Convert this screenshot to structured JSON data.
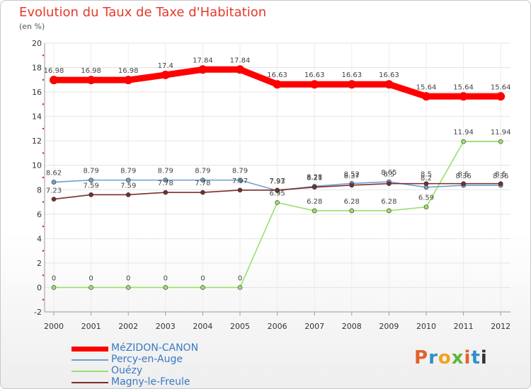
{
  "chart_data": {
    "type": "line",
    "title": "Evolution du Taux de Taxe d'Habitation",
    "ylabel": "(en %)",
    "xlabel": "",
    "categories": [
      "2000",
      "2001",
      "2002",
      "2003",
      "2004",
      "2005",
      "2006",
      "2007",
      "2008",
      "2009",
      "2010",
      "2011",
      "2012"
    ],
    "ylim": [
      -2,
      20
    ],
    "yticks": [
      "-2",
      "0",
      "2",
      "4",
      "6",
      "8",
      "10",
      "12",
      "14",
      "16",
      "18",
      "20"
    ],
    "series": [
      {
        "name": "MéZIDON-CANON",
        "color": "#ff0000",
        "values": [
          16.98,
          16.98,
          16.98,
          17.4,
          17.84,
          17.84,
          16.63,
          16.63,
          16.63,
          16.63,
          15.64,
          15.64,
          15.64
        ],
        "labels": [
          "16.98",
          "16.98",
          "16.98",
          "17.4",
          "17.84",
          "17.84",
          "16.63",
          "16.63",
          "16.63",
          "16.63",
          "15.64",
          "15.64",
          "15.64"
        ]
      },
      {
        "name": "Percy-en-Auge",
        "color": "#6f9fce",
        "values": [
          8.62,
          8.79,
          8.79,
          8.79,
          8.79,
          8.79,
          7.93,
          8.28,
          8.52,
          8.65,
          8.2,
          8.36,
          8.36
        ],
        "labels": [
          "8.62",
          "8.79",
          "8.79",
          "8.79",
          "8.79",
          "8.79",
          "7.93",
          "8.28",
          "8.52",
          "8.65",
          "8.2",
          "8.36",
          "8.36"
        ]
      },
      {
        "name": "Ouézy",
        "color": "#99e06a",
        "values": [
          0,
          0,
          0,
          0,
          0,
          0,
          6.95,
          6.28,
          6.28,
          6.28,
          6.59,
          11.94,
          11.94
        ],
        "labels": [
          "0",
          "0",
          "0",
          "0",
          "0",
          "0",
          "6.95",
          "6.28",
          "6.28",
          "6.28",
          "6.59",
          "11.94",
          "11.94"
        ]
      },
      {
        "name": "Magny-le-Freule",
        "color": "#7a2c2c",
        "values": [
          7.23,
          7.59,
          7.59,
          7.78,
          7.78,
          7.97,
          7.97,
          8.21,
          8.37,
          8.5,
          8.5,
          8.5,
          8.5
        ],
        "labels": [
          "7.23",
          "7.59",
          "7.59",
          "7.78",
          "7.78",
          "7.97",
          "7.97",
          "8.21",
          "8.37",
          "8.5",
          "8.5",
          "8.5",
          "8.5"
        ]
      }
    ],
    "legend_position": "bottom-left"
  },
  "logo": {
    "letters": [
      "P",
      "r",
      "o",
      "x",
      "i",
      "t"
    ]
  }
}
